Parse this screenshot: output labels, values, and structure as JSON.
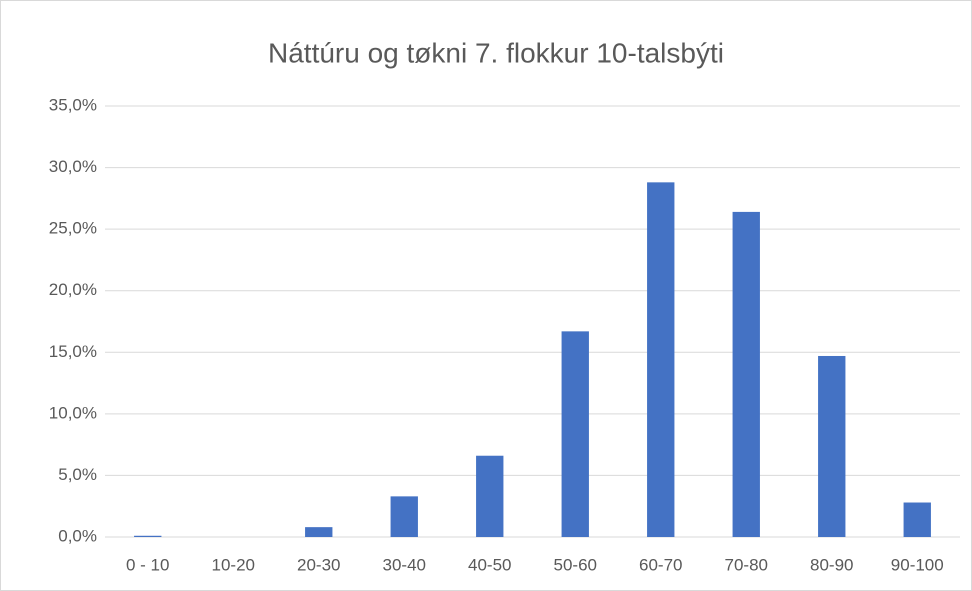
{
  "chart_data": {
    "type": "bar",
    "title": "Náttúru og tøkni 7. flokkur 10-talsbýti",
    "categories": [
      "0 - 10",
      "10-20",
      "20-30",
      "30-40",
      "40-50",
      "50-60",
      "60-70",
      "70-80",
      "80-90",
      "90-100"
    ],
    "values": [
      0.1,
      0,
      0.8,
      3.3,
      6.6,
      16.7,
      28.8,
      26.4,
      14.7,
      2.8
    ],
    "color": "#4472c4",
    "ylim": [
      0,
      35
    ],
    "yticks": [
      {
        "value": 0,
        "label": "0,0%"
      },
      {
        "value": 5,
        "label": "5,0%"
      },
      {
        "value": 10,
        "label": "10,0%"
      },
      {
        "value": 15,
        "label": "15,0%"
      },
      {
        "value": 20,
        "label": "20,0%"
      },
      {
        "value": 25,
        "label": "25,0%"
      },
      {
        "value": 30,
        "label": "30,0%"
      },
      {
        "value": 35,
        "label": "35,0%"
      }
    ],
    "grid": true
  }
}
